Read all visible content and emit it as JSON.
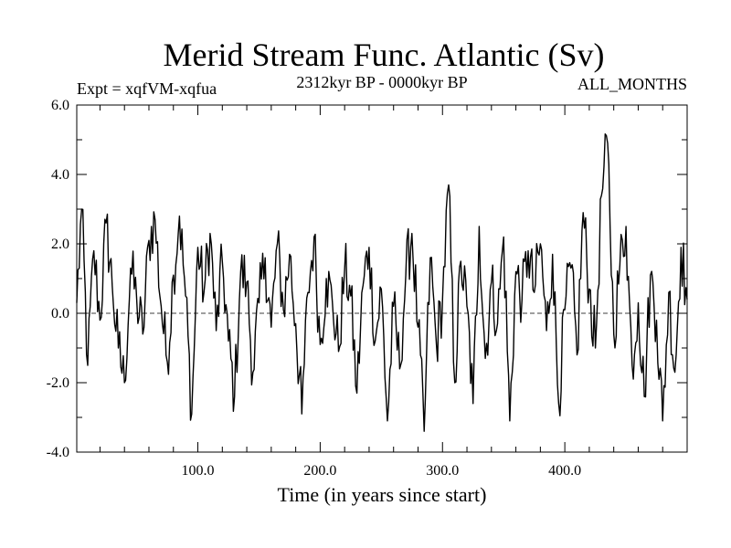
{
  "chart_data": {
    "type": "line",
    "title": "Merid Stream Func. Atlantic (Sv)",
    "subtitle_left": "Expt = xqfVM-xqfua",
    "subtitle_center": "2312kyr BP - 0000kyr BP",
    "subtitle_right": "ALL_MONTHS",
    "xlabel": "Time (in years since start)",
    "ylabel": "",
    "xlim": [
      1,
      500
    ],
    "ylim": [
      -4.0,
      6.0
    ],
    "x_ticks": [
      100,
      200,
      300,
      400
    ],
    "x_tick_labels": [
      "100.0",
      "200.0",
      "300.0",
      "400.0"
    ],
    "y_ticks": [
      -4,
      -2,
      0,
      2,
      4,
      6
    ],
    "y_tick_labels": [
      "-4.0",
      "-2.0",
      "0.0",
      "2.0",
      "4.0",
      "6.0"
    ],
    "zero_line": true,
    "grid": false,
    "series": [
      {
        "name": "Merid Stream Func. Atlantic",
        "color": "#000000",
        "x": [
          1,
          5,
          10,
          15,
          20,
          25,
          30,
          35,
          40,
          45,
          50,
          55,
          60,
          65,
          70,
          75,
          80,
          85,
          90,
          95,
          100,
          105,
          110,
          115,
          120,
          125,
          130,
          135,
          140,
          145,
          150,
          155,
          160,
          165,
          170,
          175,
          180,
          185,
          190,
          195,
          200,
          205,
          210,
          215,
          220,
          225,
          230,
          235,
          240,
          245,
          250,
          255,
          260,
          265,
          270,
          275,
          280,
          285,
          290,
          295,
          300,
          305,
          310,
          315,
          320,
          325,
          330,
          335,
          340,
          345,
          350,
          355,
          360,
          365,
          370,
          375,
          380,
          385,
          390,
          395,
          400,
          405,
          410,
          415,
          420,
          425,
          430,
          435,
          440,
          445,
          450,
          455,
          460,
          465,
          470,
          475,
          480,
          485,
          490,
          495,
          500
        ],
        "values": [
          0.3,
          3.0,
          -1.5,
          1.8,
          -0.2,
          2.6,
          0.8,
          -1.0,
          -2.0,
          1.3,
          0.4,
          -0.6,
          2.1,
          2.7,
          0.2,
          -1.4,
          1.1,
          2.8,
          0.5,
          -2.9,
          1.9,
          0.6,
          2.3,
          -0.5,
          1.5,
          -0.8,
          -2.4,
          1.2,
          0.9,
          -1.7,
          0.3,
          1.6,
          -0.4,
          2.0,
          0.1,
          1.7,
          -0.3,
          -2.9,
          0.6,
          2.2,
          -0.9,
          1.0,
          0.3,
          -1.1,
          1.3,
          0.5,
          -2.3,
          0.8,
          1.9,
          -0.8,
          0.7,
          -3.1,
          0.2,
          -1.6,
          1.1,
          2.3,
          -0.4,
          -3.4,
          1.6,
          -0.9,
          0.4,
          3.7,
          -2.0,
          1.5,
          0.2,
          -2.6,
          2.5,
          -1.3,
          0.9,
          -0.3,
          2.2,
          -3.1,
          1.2,
          0.4,
          1.8,
          0.6,
          2.0,
          -0.5,
          1.7,
          -2.6,
          0.1,
          1.3,
          -1.2,
          2.9,
          0.7,
          -1.0,
          3.4,
          4.9,
          -0.6,
          1.4,
          2.5,
          -1.5,
          0.3,
          -2.4,
          1.1,
          -0.2,
          -3.1,
          0.6,
          -1.7,
          1.9,
          0.4
        ]
      }
    ]
  },
  "colors": {
    "line": "#000000",
    "axis": "#000000",
    "background": "#ffffff"
  }
}
